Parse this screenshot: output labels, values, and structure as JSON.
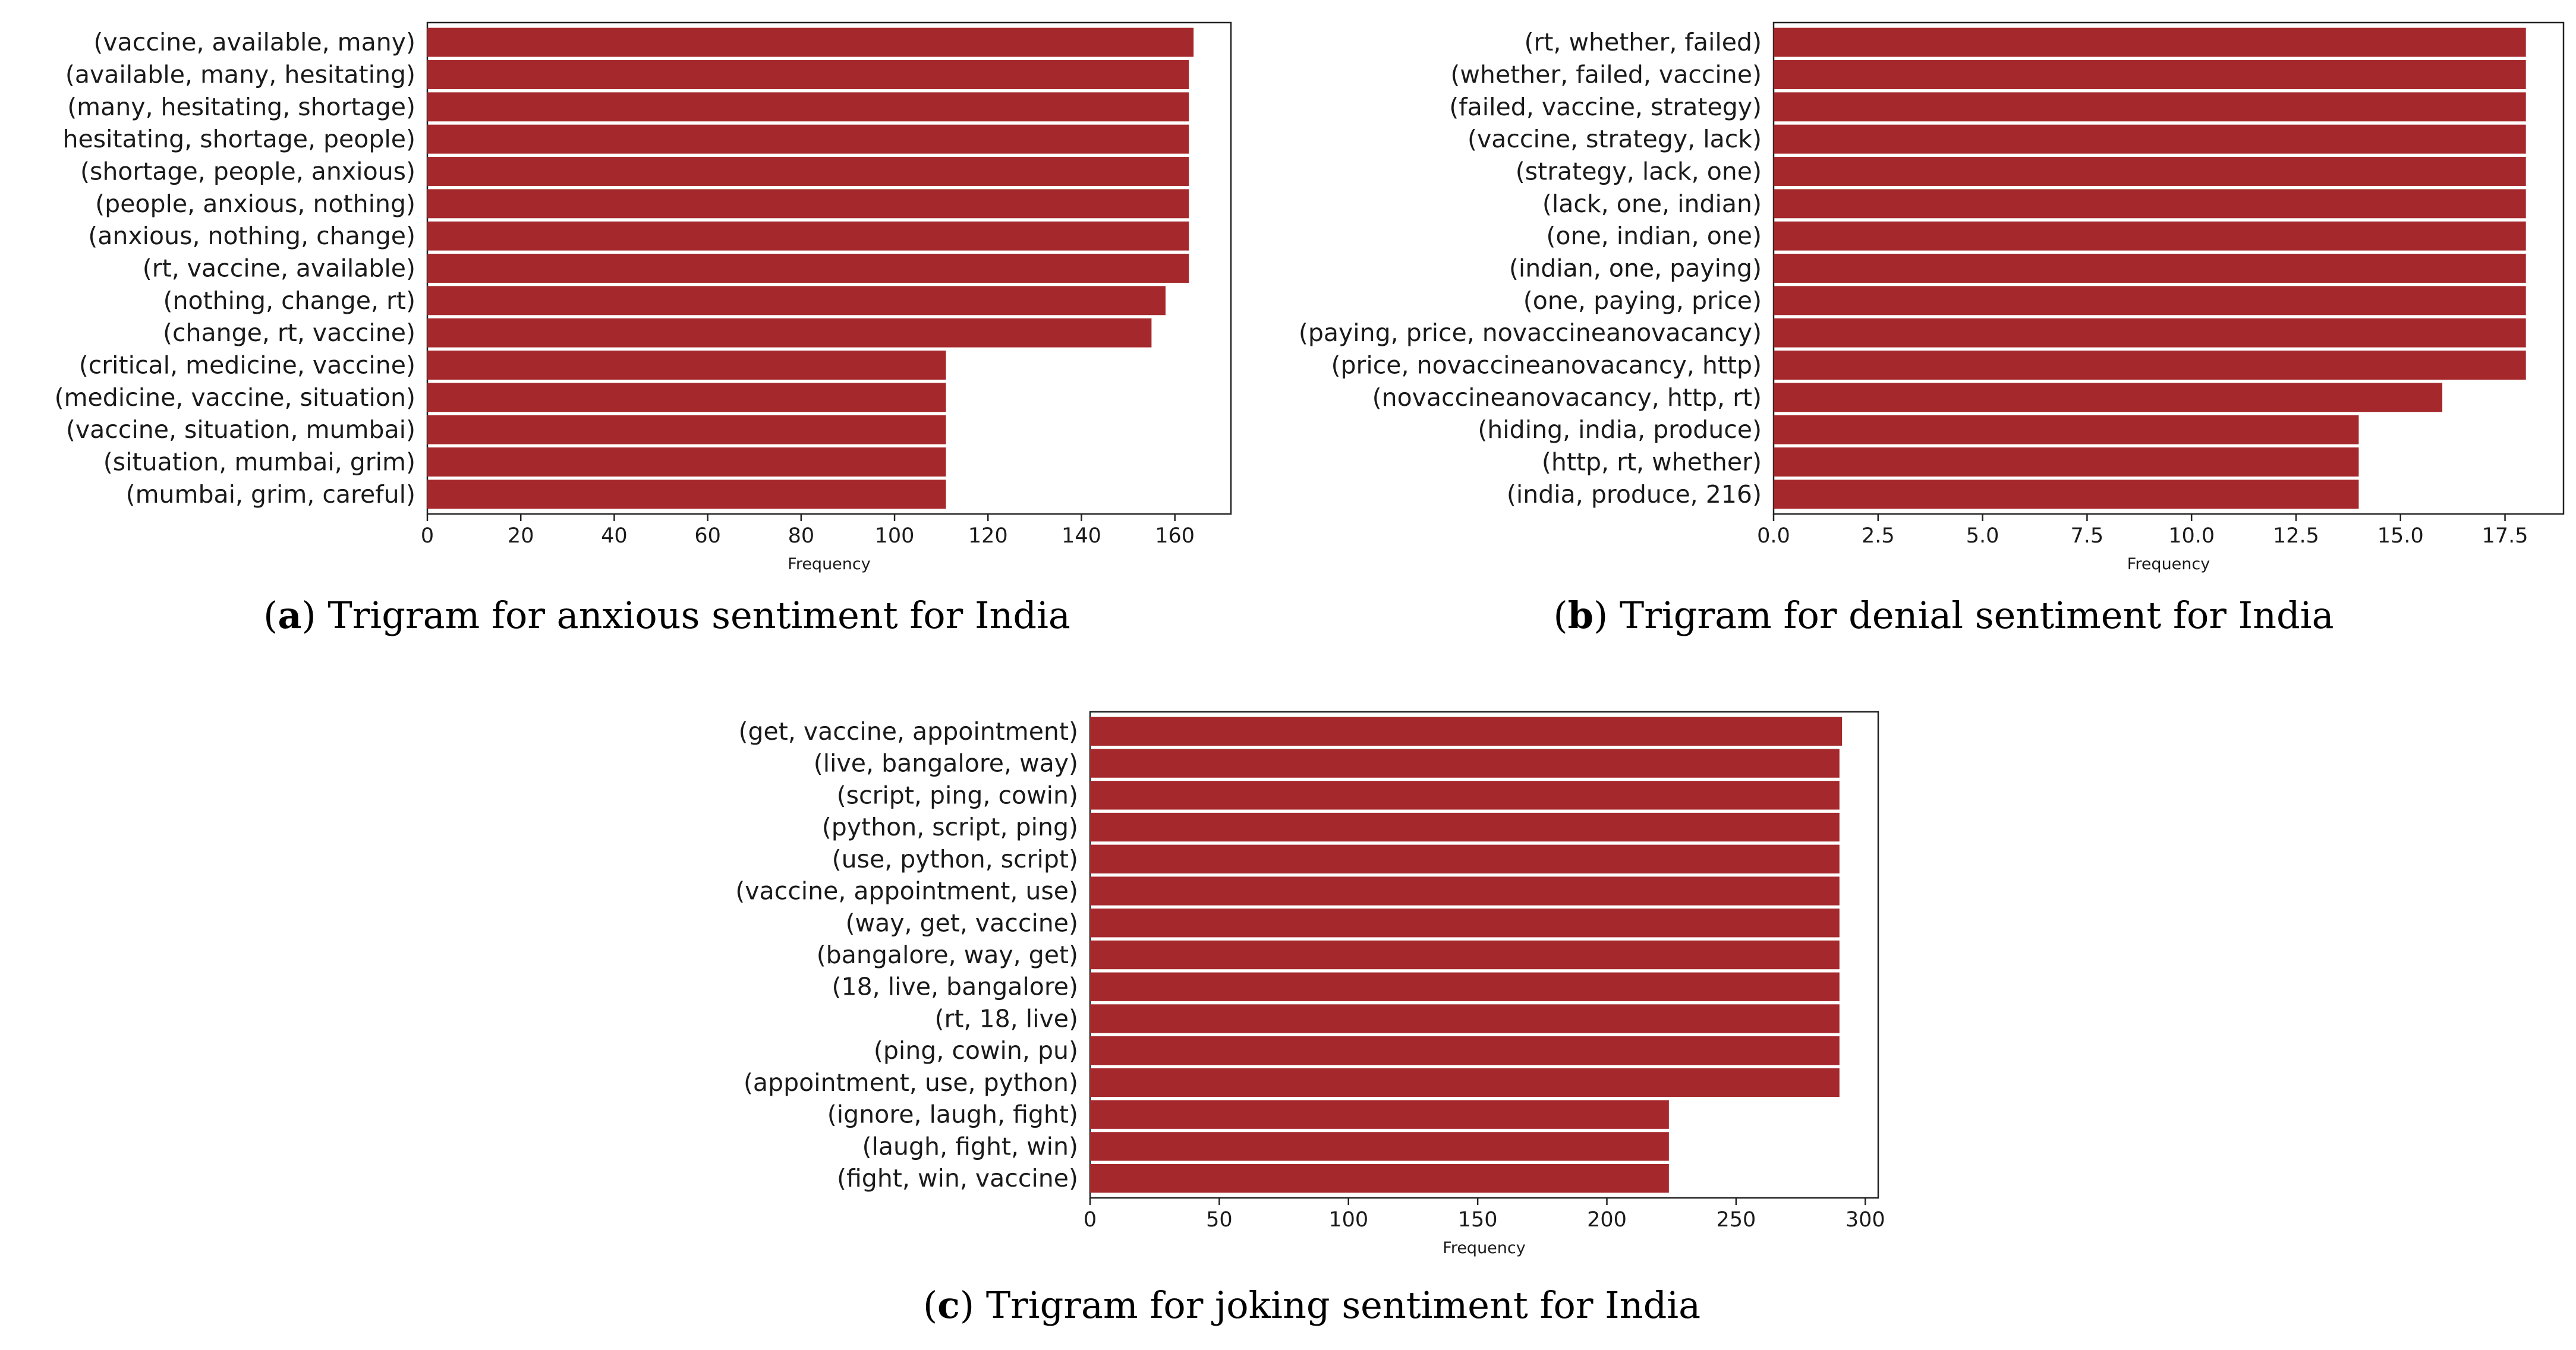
{
  "chart_data": [
    {
      "type": "bar",
      "orientation": "horizontal",
      "caption_letter": "a",
      "caption": "Trigram for anxious sentiment for India",
      "title": "",
      "xlabel": "Frequency",
      "ylabel": "",
      "xlim": [
        0,
        172
      ],
      "xticks": [
        0,
        20,
        40,
        60,
        80,
        100,
        120,
        140,
        160
      ],
      "xtick_labels": [
        "0",
        "20",
        "40",
        "60",
        "80",
        "100",
        "120",
        "140",
        "160"
      ],
      "bar_color": "#a5282c",
      "categories": [
        "(vaccine, available, many)",
        "(available, many, hesitating)",
        "(many, hesitating, shortage)",
        "hesitating, shortage, people)",
        "(shortage, people, anxious)",
        "(people, anxious, nothing)",
        "(anxious, nothing, change)",
        "(rt, vaccine, available)",
        "(nothing, change, rt)",
        "(change, rt, vaccine)",
        "(critical, medicine, vaccine)",
        "(medicine, vaccine, situation)",
        "(vaccine, situation, mumbai)",
        "(situation, mumbai, grim)",
        "(mumbai, grim, careful)"
      ],
      "values": [
        164,
        163,
        163,
        163,
        163,
        163,
        163,
        163,
        158,
        155,
        111,
        111,
        111,
        111,
        111
      ]
    },
    {
      "type": "bar",
      "orientation": "horizontal",
      "caption_letter": "b",
      "caption": "Trigram for denial sentiment for India",
      "title": "",
      "xlabel": "Frequency",
      "ylabel": "",
      "xlim": [
        0,
        18.9
      ],
      "xticks": [
        0,
        2.5,
        5,
        7.5,
        10,
        12.5,
        15,
        17.5
      ],
      "xtick_labels": [
        "0.0",
        "2.5",
        "5.0",
        "7.5",
        "10.0",
        "12.5",
        "15.0",
        "17.5"
      ],
      "bar_color": "#a5282c",
      "categories": [
        "(rt, whether, failed)",
        "(whether, failed, vaccine)",
        "(failed, vaccine, strategy)",
        "(vaccine, strategy, lack)",
        "(strategy, lack, one)",
        "(lack, one, indian)",
        "(one, indian, one)",
        "(indian, one, paying)",
        "(one, paying, price)",
        "(paying, price, novaccineanovacancy)",
        "(price, novaccineanovacancy, http)",
        "(novaccineanovacancy, http, rt)",
        "(hiding, india, produce)",
        "(http, rt, whether)",
        "(india, produce, 216)"
      ],
      "values": [
        18,
        18,
        18,
        18,
        18,
        18,
        18,
        18,
        18,
        18,
        18,
        16,
        14,
        14,
        14
      ]
    },
    {
      "type": "bar",
      "orientation": "horizontal",
      "caption_letter": "c",
      "caption": "Trigram for joking sentiment for India",
      "title": "",
      "xlabel": "Frequency",
      "ylabel": "",
      "xlim": [
        0,
        305
      ],
      "xticks": [
        0,
        50,
        100,
        150,
        200,
        250,
        300
      ],
      "xtick_labels": [
        "0",
        "50",
        "100",
        "150",
        "200",
        "250",
        "300"
      ],
      "bar_color": "#a5282c",
      "categories": [
        "(get, vaccine, appointment)",
        "(live, bangalore, way)",
        "(script, ping, cowin)",
        "(python, script, ping)",
        "(use, python, script)",
        "(vaccine, appointment, use)",
        "(way, get, vaccine)",
        "(bangalore, way, get)",
        "(18, live, bangalore)",
        "(rt, 18, live)",
        "(ping, cowin, pu)",
        "(appointment, use, python)",
        "(ignore, laugh, fight)",
        "(laugh, fight, win)",
        "(fight, win, vaccine)"
      ],
      "values": [
        291,
        290,
        290,
        290,
        290,
        290,
        290,
        290,
        290,
        290,
        290,
        290,
        224,
        224,
        224
      ]
    }
  ]
}
